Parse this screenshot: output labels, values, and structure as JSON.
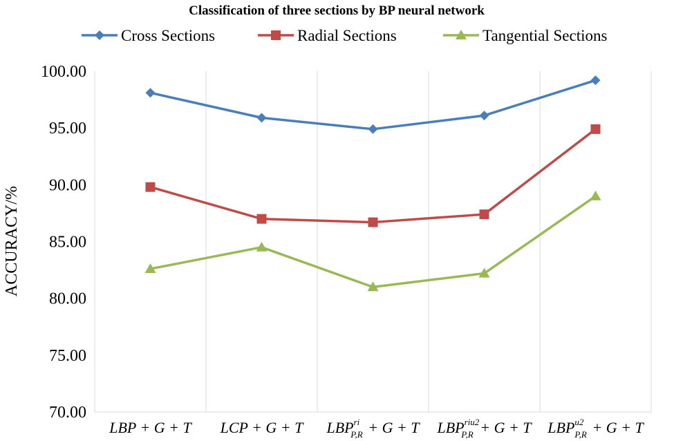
{
  "chart_data": {
    "type": "line",
    "title": "Classification of three sections by BP neural network",
    "ylabel": "ACCURACY/%",
    "xlabel": "",
    "ylim": [
      70,
      100
    ],
    "ytick_step": 5,
    "ytick_labels": [
      "70.00",
      "75.00",
      "80.00",
      "85.00",
      "90.00",
      "95.00",
      "100.00"
    ],
    "grid": "vertical",
    "legend_position": "top",
    "categories": [
      {
        "base": "LBP",
        "sup": "",
        "sub": "",
        "tail": " + G + T"
      },
      {
        "base": "LCP",
        "sup": "",
        "sub": "",
        "tail": " + G + T"
      },
      {
        "base": "LBP",
        "sup": "ri",
        "sub": "P,R",
        "tail": " + G + T"
      },
      {
        "base": "LBP",
        "sup": "riu2",
        "sub": "P,R",
        "tail": " + G + T"
      },
      {
        "base": "LBP",
        "sup": "u2",
        "sub": "P,R",
        "tail": " + G + T"
      }
    ],
    "series": [
      {
        "name": "Cross Sections",
        "color": "#4a7ebb",
        "marker": "diamond",
        "values": [
          98.1,
          95.9,
          94.9,
          96.1,
          99.2
        ]
      },
      {
        "name": "Radial Sections",
        "color": "#be4b48",
        "marker": "square",
        "values": [
          89.8,
          87.0,
          86.7,
          87.4,
          94.9
        ]
      },
      {
        "name": "Tangential Sections",
        "color": "#98b954",
        "marker": "triangle",
        "values": [
          82.6,
          84.5,
          81.0,
          82.2,
          89.0
        ]
      }
    ]
  }
}
